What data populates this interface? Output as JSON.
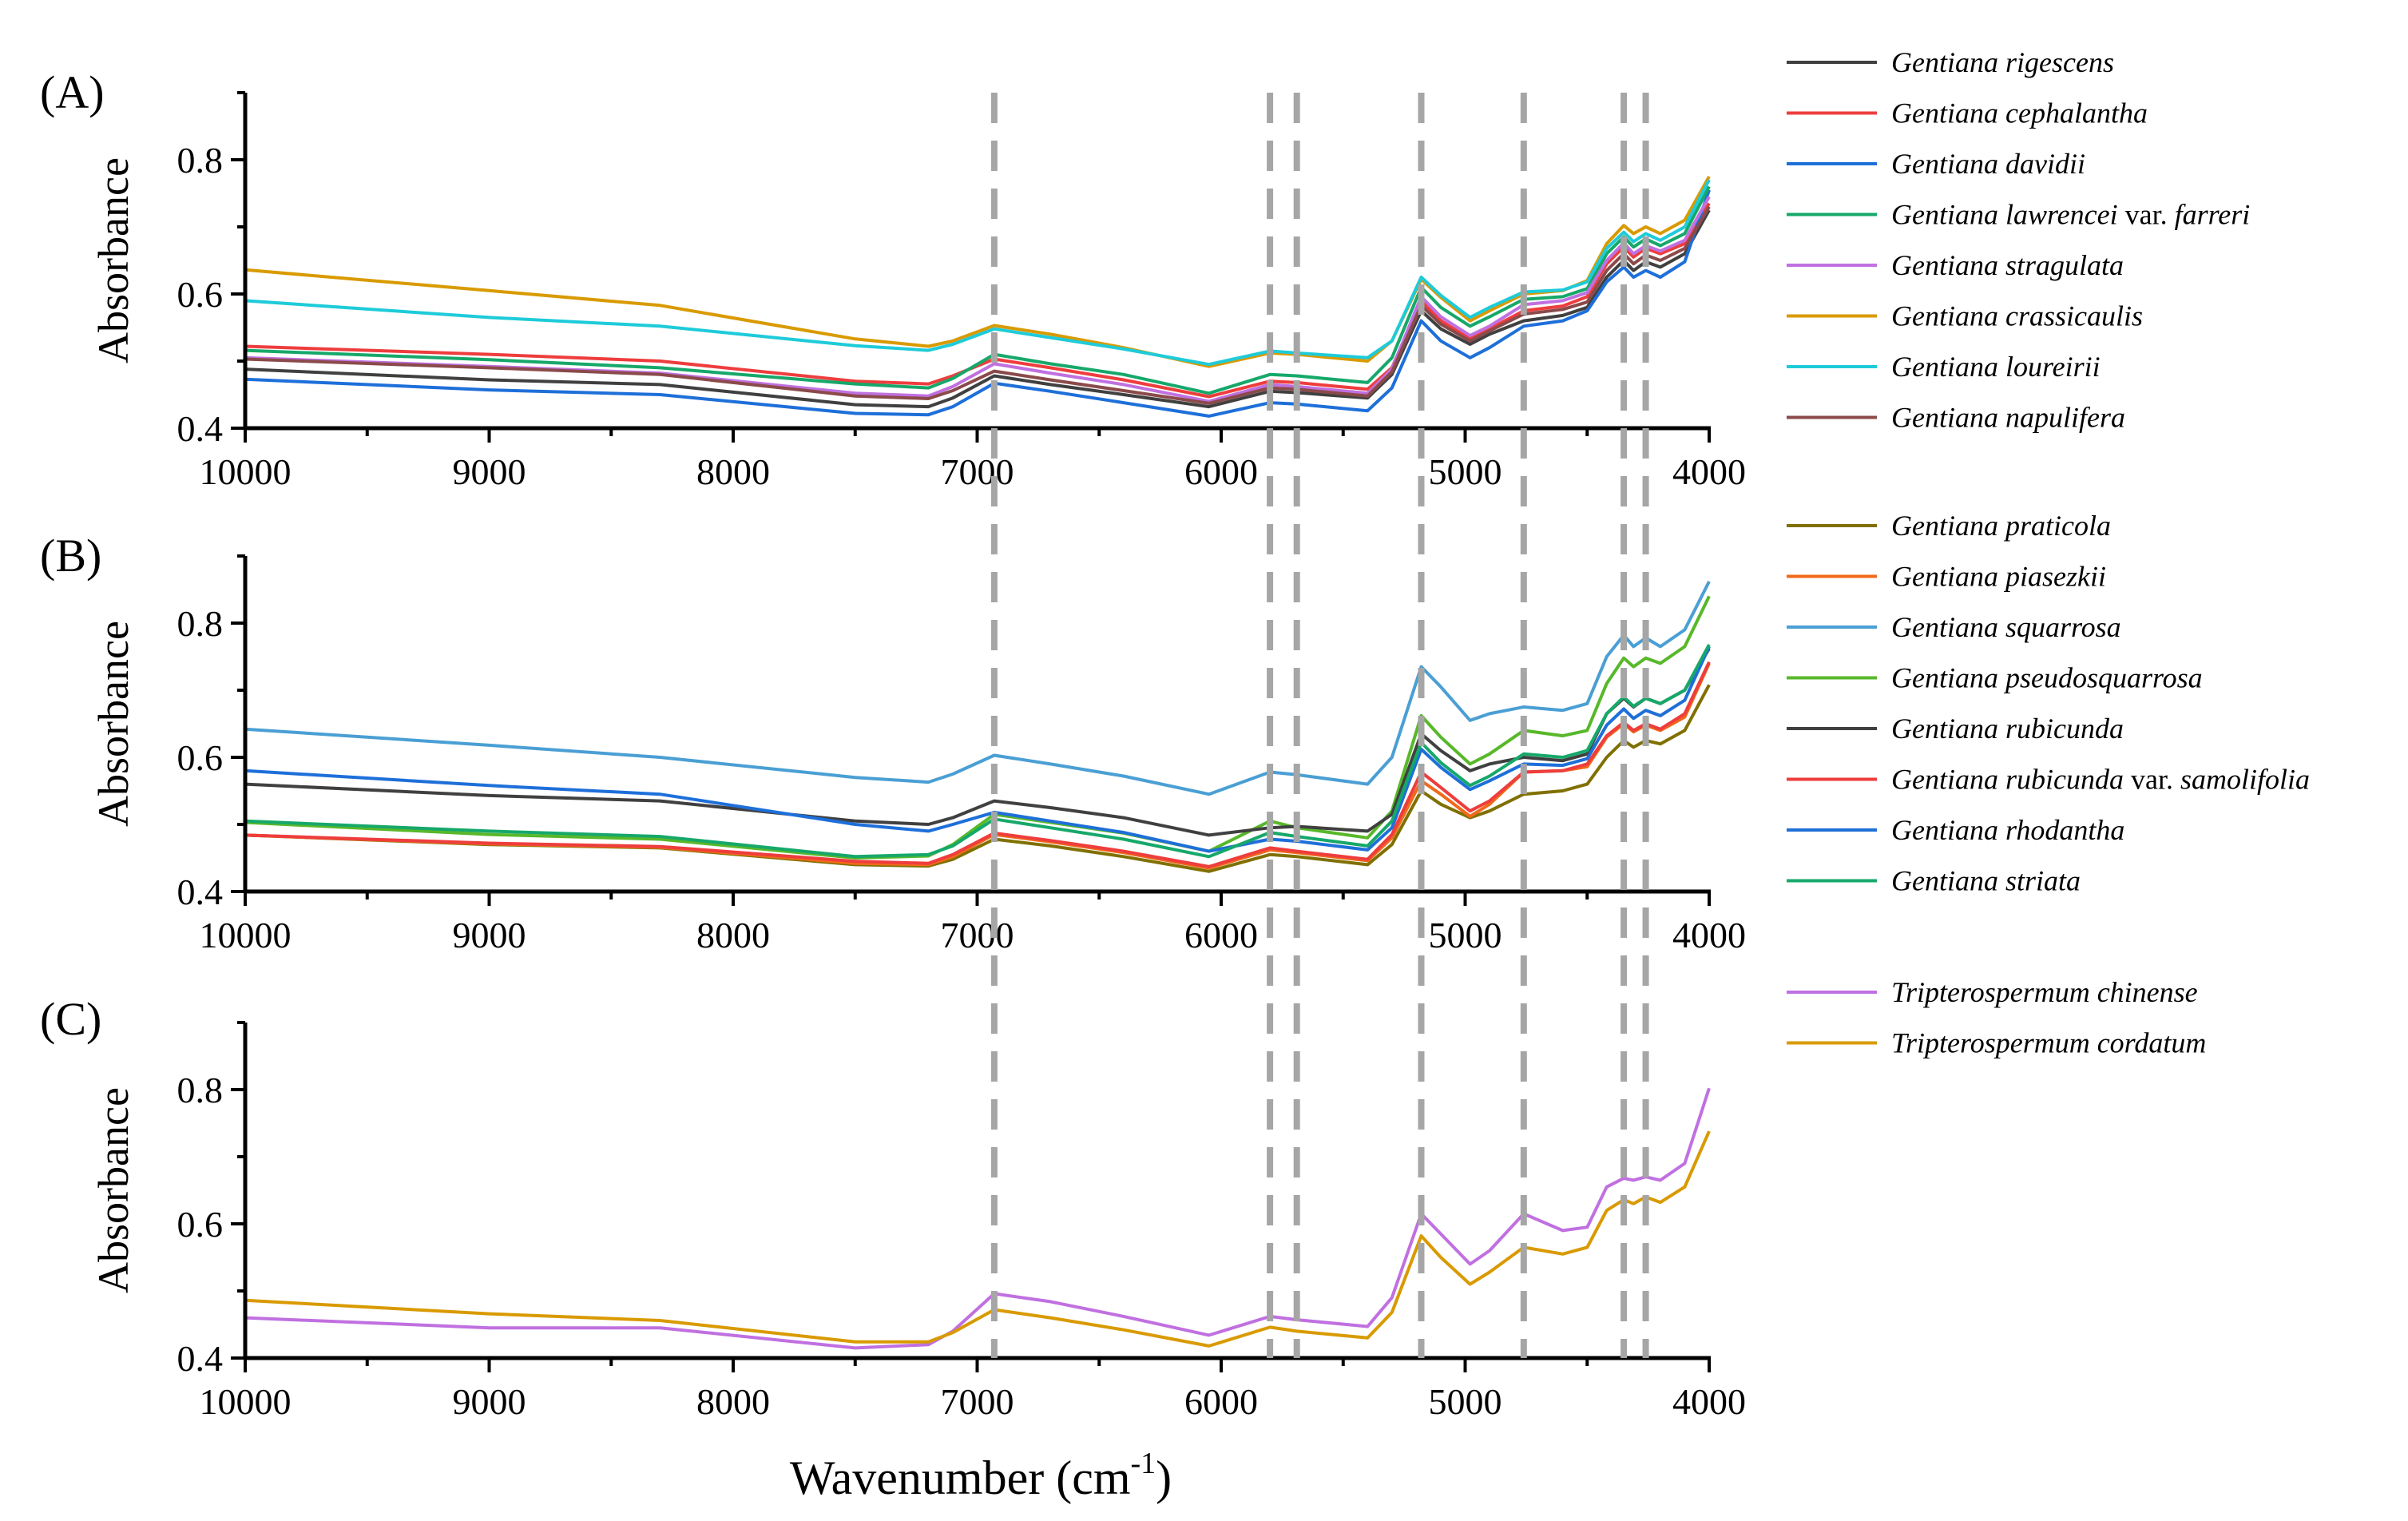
{
  "figure": {
    "xlabel_text": "Wavenumber (cm",
    "xlabel_sup": "-1",
    "xlabel_close": ")",
    "marker_lines": [
      6930,
      5800,
      5690,
      5180,
      4760,
      4350,
      4260
    ],
    "marker_color": "#a6a6a6"
  },
  "chart_data": [
    {
      "type": "line",
      "panel_label": "(A)",
      "xlabel": "",
      "ylabel": "Absorbance",
      "xlim": [
        10000,
        4000
      ],
      "ylim": [
        0.4,
        0.9
      ],
      "xticks": [
        10000,
        9000,
        8000,
        7000,
        6000,
        5000,
        4000
      ],
      "yticks": [
        0.4,
        0.6,
        0.8
      ],
      "ytick_labels": [
        "0.4",
        "0.6",
        "0.8"
      ],
      "x": [
        10000,
        9000,
        8300,
        7500,
        7200,
        7100,
        6930,
        6700,
        6400,
        6050,
        5800,
        5690,
        5400,
        5300,
        5180,
        5100,
        4980,
        4900,
        4760,
        4600,
        4500,
        4420,
        4350,
        4310,
        4260,
        4200,
        4100,
        4000
      ],
      "series": [
        {
          "name": "Gentiana rigescens",
          "italic": "Gentiana rigescens",
          "upright": "",
          "italic2": "",
          "color": "#404040",
          "values": [
            0.488,
            0.472,
            0.465,
            0.435,
            0.432,
            0.445,
            0.478,
            0.465,
            0.45,
            0.432,
            0.455,
            0.453,
            0.445,
            0.48,
            0.575,
            0.548,
            0.525,
            0.54,
            0.56,
            0.568,
            0.58,
            0.625,
            0.65,
            0.635,
            0.648,
            0.64,
            0.66,
            0.725
          ]
        },
        {
          "name": "Gentiana cephalantha",
          "italic": "Gentiana cephalantha",
          "upright": "",
          "italic2": "",
          "color": "#ee3d3d",
          "values": [
            0.522,
            0.51,
            0.5,
            0.47,
            0.466,
            0.478,
            0.503,
            0.49,
            0.472,
            0.447,
            0.47,
            0.468,
            0.458,
            0.49,
            0.59,
            0.56,
            0.533,
            0.548,
            0.575,
            0.582,
            0.596,
            0.645,
            0.67,
            0.655,
            0.668,
            0.66,
            0.675,
            0.735
          ]
        },
        {
          "name": "Gentiana davidii",
          "italic": "Gentiana davidii",
          "upright": "",
          "italic2": "",
          "color": "#1e6fd9",
          "values": [
            0.473,
            0.457,
            0.45,
            0.422,
            0.42,
            0.432,
            0.467,
            0.455,
            0.438,
            0.418,
            0.438,
            0.436,
            0.426,
            0.46,
            0.56,
            0.53,
            0.505,
            0.52,
            0.552,
            0.56,
            0.575,
            0.618,
            0.64,
            0.625,
            0.635,
            0.625,
            0.648,
            0.755
          ]
        },
        {
          "name": "Gentiana lawrencei var. farreri",
          "italic": "Gentiana lawrencei",
          "upright": " var. ",
          "italic2": "farreri",
          "color": "#16a86a",
          "values": [
            0.516,
            0.502,
            0.49,
            0.466,
            0.46,
            0.474,
            0.51,
            0.496,
            0.48,
            0.452,
            0.48,
            0.478,
            0.468,
            0.505,
            0.61,
            0.58,
            0.552,
            0.566,
            0.592,
            0.596,
            0.608,
            0.66,
            0.685,
            0.67,
            0.682,
            0.672,
            0.69,
            0.76
          ]
        },
        {
          "name": "Gentiana stragulata",
          "italic": "Gentiana stragulata",
          "upright": "",
          "italic2": "",
          "color": "#c070e0",
          "values": [
            0.505,
            0.492,
            0.482,
            0.452,
            0.448,
            0.462,
            0.496,
            0.482,
            0.465,
            0.44,
            0.465,
            0.462,
            0.452,
            0.488,
            0.596,
            0.566,
            0.538,
            0.552,
            0.584,
            0.59,
            0.602,
            0.65,
            0.676,
            0.66,
            0.672,
            0.664,
            0.68,
            0.745
          ]
        },
        {
          "name": "Gentiana crassicaulis",
          "italic": "Gentiana crassicaulis",
          "upright": "",
          "italic2": "",
          "color": "#d99a00",
          "values": [
            0.636,
            0.605,
            0.583,
            0.533,
            0.522,
            0.53,
            0.553,
            0.54,
            0.52,
            0.492,
            0.512,
            0.51,
            0.5,
            0.53,
            0.622,
            0.595,
            0.56,
            0.575,
            0.6,
            0.605,
            0.62,
            0.675,
            0.702,
            0.69,
            0.7,
            0.69,
            0.71,
            0.775
          ]
        },
        {
          "name": "Gentiana loureirii",
          "italic": "Gentiana loureirii",
          "upright": "",
          "italic2": "",
          "color": "#1ecbd9",
          "values": [
            0.59,
            0.565,
            0.552,
            0.523,
            0.516,
            0.525,
            0.548,
            0.535,
            0.518,
            0.495,
            0.515,
            0.512,
            0.505,
            0.53,
            0.625,
            0.598,
            0.565,
            0.58,
            0.603,
            0.606,
            0.618,
            0.668,
            0.692,
            0.678,
            0.69,
            0.68,
            0.7,
            0.77
          ]
        },
        {
          "name": "Gentiana napulifera",
          "italic": "Gentiana napulifera",
          "upright": "",
          "italic2": "",
          "color": "#8b4a4a",
          "values": [
            0.503,
            0.49,
            0.48,
            0.448,
            0.444,
            0.456,
            0.485,
            0.472,
            0.456,
            0.437,
            0.46,
            0.458,
            0.448,
            0.484,
            0.583,
            0.555,
            0.53,
            0.545,
            0.57,
            0.577,
            0.588,
            0.635,
            0.66,
            0.645,
            0.658,
            0.65,
            0.668,
            0.73
          ]
        }
      ]
    },
    {
      "type": "line",
      "panel_label": "(B)",
      "xlabel": "",
      "ylabel": "Absorbance",
      "xlim": [
        10000,
        4000
      ],
      "ylim": [
        0.4,
        0.9
      ],
      "xticks": [
        10000,
        9000,
        8000,
        7000,
        6000,
        5000,
        4000
      ],
      "yticks": [
        0.4,
        0.6,
        0.8
      ],
      "ytick_labels": [
        "0.4",
        "0.6",
        "0.8"
      ],
      "x": [
        10000,
        9000,
        8300,
        7500,
        7200,
        7100,
        6930,
        6700,
        6400,
        6050,
        5800,
        5690,
        5400,
        5300,
        5180,
        5100,
        4980,
        4900,
        4760,
        4600,
        4500,
        4420,
        4350,
        4310,
        4260,
        4200,
        4100,
        4000
      ],
      "series": [
        {
          "name": "Gentiana praticola",
          "italic": "Gentiana praticola",
          "upright": "",
          "italic2": "",
          "color": "#807000",
          "values": [
            0.484,
            0.47,
            0.465,
            0.44,
            0.438,
            0.448,
            0.478,
            0.468,
            0.452,
            0.43,
            0.455,
            0.452,
            0.44,
            0.47,
            0.55,
            0.53,
            0.51,
            0.52,
            0.545,
            0.55,
            0.56,
            0.6,
            0.625,
            0.615,
            0.625,
            0.62,
            0.64,
            0.708
          ]
        },
        {
          "name": "Gentiana piasezkii",
          "italic": "Gentiana piasezkii",
          "upright": "",
          "italic2": "",
          "color": "#f06a1a",
          "values": [
            0.484,
            0.471,
            0.466,
            0.442,
            0.44,
            0.452,
            0.485,
            0.474,
            0.458,
            0.435,
            0.462,
            0.458,
            0.446,
            0.48,
            0.565,
            0.545,
            0.512,
            0.53,
            0.578,
            0.58,
            0.586,
            0.63,
            0.65,
            0.638,
            0.648,
            0.64,
            0.66,
            0.74
          ]
        },
        {
          "name": "Gentiana squarrosa",
          "italic": "Gentiana squarrosa",
          "upright": "",
          "italic2": "",
          "color": "#4a9fd4",
          "values": [
            0.642,
            0.618,
            0.6,
            0.57,
            0.563,
            0.575,
            0.603,
            0.59,
            0.572,
            0.545,
            0.578,
            0.574,
            0.56,
            0.6,
            0.735,
            0.705,
            0.655,
            0.665,
            0.675,
            0.67,
            0.68,
            0.75,
            0.782,
            0.765,
            0.778,
            0.765,
            0.79,
            0.862
          ]
        },
        {
          "name": "Gentiana pseudosquarrosa",
          "italic": "Gentiana pseudosquarrosa",
          "upright": "",
          "italic2": "",
          "color": "#58b82a",
          "values": [
            0.503,
            0.485,
            0.478,
            0.45,
            0.453,
            0.47,
            0.515,
            0.503,
            0.487,
            0.46,
            0.505,
            0.495,
            0.48,
            0.52,
            0.662,
            0.63,
            0.59,
            0.605,
            0.64,
            0.632,
            0.64,
            0.71,
            0.748,
            0.735,
            0.748,
            0.74,
            0.765,
            0.84
          ]
        },
        {
          "name": "Gentiana rubicunda",
          "italic": "Gentiana rubicunda",
          "upright": "",
          "italic2": "",
          "color": "#404040",
          "values": [
            0.56,
            0.543,
            0.535,
            0.505,
            0.5,
            0.51,
            0.535,
            0.525,
            0.51,
            0.484,
            0.495,
            0.497,
            0.49,
            0.515,
            0.635,
            0.61,
            0.58,
            0.59,
            0.6,
            0.595,
            0.605,
            0.665,
            0.688,
            0.675,
            0.688,
            0.68,
            0.7,
            0.762
          ]
        },
        {
          "name": "Gentiana rubicunda var. samolifolia",
          "italic": "Gentiana rubicunda",
          "upright": " var. ",
          "italic2": "samolifolia",
          "color": "#ee3d3d",
          "values": [
            0.484,
            0.472,
            0.467,
            0.445,
            0.442,
            0.455,
            0.487,
            0.476,
            0.46,
            0.437,
            0.465,
            0.46,
            0.448,
            0.485,
            0.578,
            0.555,
            0.52,
            0.535,
            0.578,
            0.58,
            0.59,
            0.632,
            0.652,
            0.64,
            0.65,
            0.642,
            0.665,
            0.742
          ]
        },
        {
          "name": "Gentiana rhodantha",
          "italic": "Gentiana rhodantha",
          "upright": "",
          "italic2": "",
          "color": "#1e6fd9",
          "values": [
            0.58,
            0.558,
            0.545,
            0.5,
            0.49,
            0.5,
            0.518,
            0.505,
            0.488,
            0.46,
            0.478,
            0.475,
            0.462,
            0.495,
            0.612,
            0.585,
            0.552,
            0.565,
            0.59,
            0.588,
            0.598,
            0.648,
            0.672,
            0.658,
            0.67,
            0.662,
            0.685,
            0.765
          ]
        },
        {
          "name": "Gentiana striata",
          "italic": "Gentiana striata",
          "upright": "",
          "italic2": "",
          "color": "#16a86a",
          "values": [
            0.505,
            0.49,
            0.482,
            0.452,
            0.455,
            0.468,
            0.508,
            0.495,
            0.478,
            0.452,
            0.488,
            0.482,
            0.468,
            0.505,
            0.622,
            0.592,
            0.558,
            0.572,
            0.605,
            0.6,
            0.61,
            0.665,
            0.69,
            0.676,
            0.688,
            0.68,
            0.7,
            0.768
          ]
        }
      ]
    },
    {
      "type": "line",
      "panel_label": "(C)",
      "xlabel": "Wavenumber (cm-1)",
      "ylabel": "Absorbance",
      "xlim": [
        10000,
        4000
      ],
      "ylim": [
        0.4,
        0.9
      ],
      "xticks": [
        10000,
        9000,
        8000,
        7000,
        6000,
        5000,
        4000
      ],
      "yticks": [
        0.4,
        0.6,
        0.8
      ],
      "ytick_labels": [
        "0.4",
        "0.6",
        "0.8"
      ],
      "x": [
        10000,
        9000,
        8300,
        7500,
        7200,
        7100,
        6930,
        6700,
        6400,
        6050,
        5800,
        5690,
        5400,
        5300,
        5180,
        5100,
        4980,
        4900,
        4760,
        4600,
        4500,
        4420,
        4350,
        4310,
        4260,
        4200,
        4100,
        4000
      ],
      "series": [
        {
          "name": "Tripterospermum chinense",
          "italic": "Tripterospermum chinense",
          "upright": "",
          "italic2": "",
          "color": "#c070e0",
          "values": [
            0.46,
            0.445,
            0.445,
            0.415,
            0.42,
            0.44,
            0.496,
            0.484,
            0.462,
            0.434,
            0.462,
            0.457,
            0.447,
            0.49,
            0.615,
            0.585,
            0.54,
            0.56,
            0.615,
            0.59,
            0.595,
            0.655,
            0.668,
            0.665,
            0.67,
            0.665,
            0.69,
            0.802
          ]
        },
        {
          "name": "Tripterospermum cordatum",
          "italic": "Tripterospermum cordatum",
          "upright": "",
          "italic2": "",
          "color": "#d99a00",
          "values": [
            0.486,
            0.466,
            0.456,
            0.424,
            0.424,
            0.438,
            0.472,
            0.46,
            0.442,
            0.418,
            0.446,
            0.44,
            0.43,
            0.468,
            0.582,
            0.55,
            0.51,
            0.528,
            0.565,
            0.555,
            0.565,
            0.62,
            0.636,
            0.63,
            0.64,
            0.632,
            0.655,
            0.738
          ]
        }
      ]
    }
  ]
}
